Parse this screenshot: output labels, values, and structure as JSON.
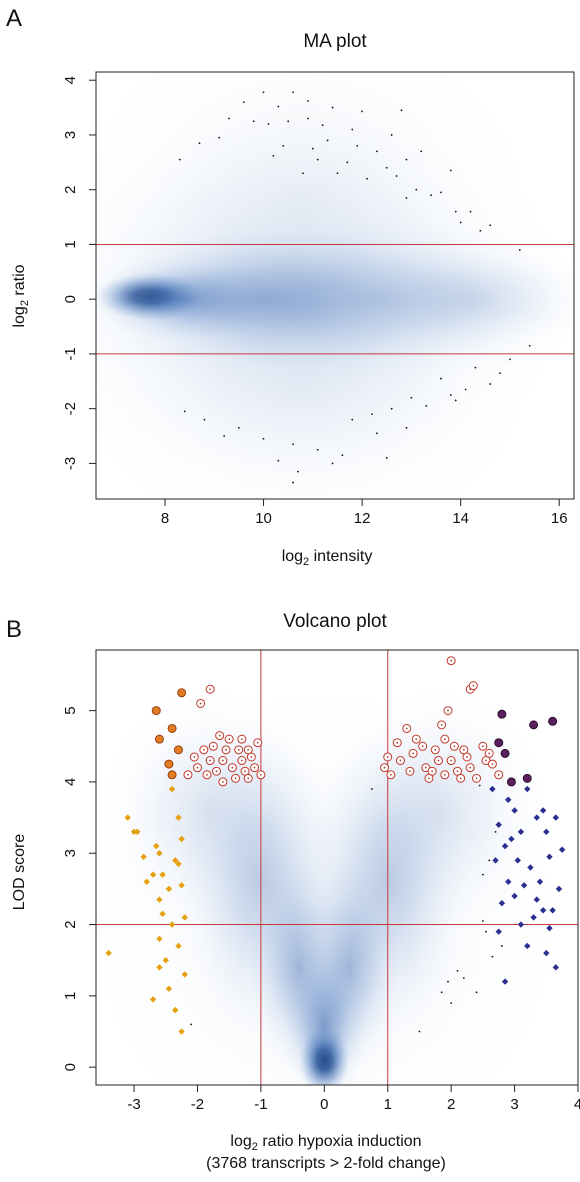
{
  "panels": [
    {
      "letter": "A"
    },
    {
      "letter": "B"
    }
  ],
  "colors": {
    "density_core": "#0b2a63",
    "density_mid": "#2f62aa",
    "density_light": "#c8d7ee",
    "threshold_lines": "#c83a3a",
    "induced_hollow": "#c0392b",
    "induced_filled_orange": "#e07c22",
    "induced_filled_purple": "#5b1f5e",
    "repressed_orange_diamond": "#e5a010",
    "repressed_blue_diamond": "#2b2f8f",
    "points": "#111111"
  },
  "chart_data": [
    {
      "type": "scatter",
      "title": "MA plot",
      "xlabel": "log2 intensity",
      "ylabel": "log2 ratio",
      "xlim": [
        6.6,
        16.3
      ],
      "ylim": [
        -3.65,
        4.15
      ],
      "xticks": [
        8,
        10,
        12,
        14,
        16
      ],
      "yticks": [
        -3,
        -2,
        -1,
        0,
        1,
        2,
        3,
        4
      ],
      "hlines": [
        1,
        -1
      ],
      "grid": false,
      "density": [
        {
          "x": 7.7,
          "y": 0.05,
          "sx": 0.5,
          "sy": 0.2,
          "alpha": 0.85
        },
        {
          "x": 8.4,
          "y": 0.0,
          "sx": 0.9,
          "sy": 0.35,
          "alpha": 0.45
        },
        {
          "x": 10.0,
          "y": 0.0,
          "sx": 1.6,
          "sy": 0.6,
          "alpha": 0.35
        },
        {
          "x": 12.3,
          "y": 0.0,
          "sx": 1.8,
          "sy": 0.7,
          "alpha": 0.22
        },
        {
          "x": 10.5,
          "y": 0.0,
          "sx": 2.7,
          "sy": 1.5,
          "alpha": 0.14
        },
        {
          "x": 14.2,
          "y": 0.0,
          "sx": 1.3,
          "sy": 0.5,
          "alpha": 0.15
        },
        {
          "x": 10.8,
          "y": 1.8,
          "sx": 2.2,
          "sy": 1.6,
          "alpha": 0.07
        },
        {
          "x": 10.8,
          "y": -1.6,
          "sx": 2.2,
          "sy": 1.4,
          "alpha": 0.07
        }
      ],
      "points": [
        [
          10.0,
          3.78
        ],
        [
          9.6,
          3.6
        ],
        [
          10.3,
          3.52
        ],
        [
          10.6,
          3.78
        ],
        [
          10.9,
          3.62
        ],
        [
          11.4,
          3.5
        ],
        [
          12.0,
          3.43
        ],
        [
          12.8,
          3.45
        ],
        [
          9.3,
          3.3
        ],
        [
          9.8,
          3.25
        ],
        [
          10.1,
          3.2
        ],
        [
          10.5,
          3.25
        ],
        [
          10.9,
          3.3
        ],
        [
          11.2,
          3.18
        ],
        [
          11.8,
          3.1
        ],
        [
          12.6,
          3.0
        ],
        [
          8.7,
          2.85
        ],
        [
          9.1,
          2.95
        ],
        [
          10.4,
          2.8
        ],
        [
          11.0,
          2.75
        ],
        [
          11.3,
          2.9
        ],
        [
          11.9,
          2.8
        ],
        [
          12.3,
          2.7
        ],
        [
          13.2,
          2.7
        ],
        [
          8.3,
          2.55
        ],
        [
          10.2,
          2.62
        ],
        [
          11.1,
          2.55
        ],
        [
          11.7,
          2.5
        ],
        [
          12.5,
          2.4
        ],
        [
          12.9,
          2.55
        ],
        [
          13.8,
          2.35
        ],
        [
          10.8,
          2.3
        ],
        [
          11.5,
          2.3
        ],
        [
          12.1,
          2.2
        ],
        [
          12.7,
          2.25
        ],
        [
          13.1,
          2.0
        ],
        [
          13.4,
          1.9
        ],
        [
          13.6,
          1.95
        ],
        [
          12.9,
          1.85
        ],
        [
          13.9,
          1.6
        ],
        [
          14.2,
          1.6
        ],
        [
          14.6,
          1.35
        ],
        [
          14.0,
          1.4
        ],
        [
          14.4,
          1.25
        ],
        [
          15.2,
          0.9
        ],
        [
          15.4,
          -0.85
        ],
        [
          15.0,
          -1.1
        ],
        [
          14.8,
          -1.35
        ],
        [
          14.3,
          -1.25
        ],
        [
          13.6,
          -1.45
        ],
        [
          14.6,
          -1.55
        ],
        [
          14.1,
          -1.65
        ],
        [
          13.8,
          -1.75
        ],
        [
          13.0,
          -1.8
        ],
        [
          13.3,
          -1.95
        ],
        [
          12.6,
          -2.0
        ],
        [
          12.2,
          -2.1
        ],
        [
          11.8,
          -2.2
        ],
        [
          13.9,
          -1.85
        ],
        [
          12.9,
          -2.35
        ],
        [
          12.3,
          -2.45
        ],
        [
          9.5,
          -2.35
        ],
        [
          10.0,
          -2.55
        ],
        [
          10.6,
          -2.65
        ],
        [
          11.1,
          -2.75
        ],
        [
          11.6,
          -2.85
        ],
        [
          10.3,
          -2.95
        ],
        [
          11.4,
          -3.0
        ],
        [
          10.7,
          -3.15
        ],
        [
          10.6,
          -3.35
        ],
        [
          8.4,
          -2.05
        ],
        [
          8.8,
          -2.2
        ],
        [
          9.2,
          -2.5
        ],
        [
          12.5,
          -2.9
        ]
      ]
    },
    {
      "type": "scatter",
      "title": "Volcano plot",
      "xlabel": "log2 ratio hypoxia induction",
      "xlabel_sub": "(3768 transcripts > 2-fold change)",
      "ylabel": "LOD score",
      "xlim": [
        -3.6,
        4.0
      ],
      "ylim": [
        -0.25,
        5.85
      ],
      "xticks": [
        -3,
        -2,
        -1,
        0,
        1,
        2,
        3,
        4
      ],
      "yticks": [
        0,
        1,
        2,
        3,
        4,
        5
      ],
      "vlines": [
        -1,
        1
      ],
      "hlines": [
        2
      ],
      "grid": false,
      "density": [
        {
          "x": 0.0,
          "y": 0.1,
          "sx": 0.18,
          "sy": 0.22,
          "alpha": 0.9
        },
        {
          "x": 0.0,
          "y": 0.6,
          "sx": 0.3,
          "sy": 0.55,
          "alpha": 0.55
        },
        {
          "x": -0.4,
          "y": 1.4,
          "sx": 0.35,
          "sy": 0.7,
          "alpha": 0.35
        },
        {
          "x": 0.4,
          "y": 1.4,
          "sx": 0.35,
          "sy": 0.7,
          "alpha": 0.35
        },
        {
          "x": -1.0,
          "y": 2.6,
          "sx": 0.6,
          "sy": 1.0,
          "alpha": 0.25
        },
        {
          "x": 1.0,
          "y": 2.6,
          "sx": 0.6,
          "sy": 1.0,
          "alpha": 0.25
        },
        {
          "x": -1.8,
          "y": 3.6,
          "sx": 0.8,
          "sy": 0.8,
          "alpha": 0.14
        },
        {
          "x": 1.8,
          "y": 3.6,
          "sx": 0.8,
          "sy": 0.8,
          "alpha": 0.14
        },
        {
          "x": 0.0,
          "y": 2.0,
          "sx": 1.8,
          "sy": 1.6,
          "alpha": 0.07
        }
      ],
      "orange_diamonds": [
        [
          -3.4,
          1.6
        ],
        [
          -3.1,
          3.5
        ],
        [
          -3.0,
          3.3
        ],
        [
          -2.85,
          2.95
        ],
        [
          -2.95,
          3.3
        ],
        [
          -2.6,
          3.0
        ],
        [
          -2.7,
          2.7
        ],
        [
          -2.6,
          2.35
        ],
        [
          -2.45,
          2.5
        ],
        [
          -2.55,
          2.15
        ],
        [
          -2.3,
          2.85
        ],
        [
          -2.25,
          2.55
        ],
        [
          -2.6,
          1.4
        ],
        [
          -2.45,
          1.1
        ],
        [
          -2.35,
          0.8
        ],
        [
          -2.25,
          0.5
        ],
        [
          -2.3,
          1.7
        ],
        [
          -2.2,
          1.3
        ],
        [
          -2.4,
          2.0
        ],
        [
          -2.2,
          2.1
        ],
        [
          -2.6,
          1.8
        ],
        [
          -2.4,
          3.9
        ],
        [
          -2.3,
          3.5
        ],
        [
          -2.25,
          3.2
        ],
        [
          -2.5,
          1.5
        ],
        [
          -2.7,
          0.95
        ],
        [
          -2.55,
          2.7
        ],
        [
          -2.35,
          2.9
        ],
        [
          -2.65,
          3.1
        ],
        [
          -2.8,
          2.6
        ]
      ],
      "orange_circles": [
        [
          -2.65,
          5.0
        ],
        [
          -2.4,
          4.75
        ],
        [
          -2.3,
          4.45
        ],
        [
          -2.45,
          4.25
        ],
        [
          -2.25,
          5.25
        ],
        [
          -2.4,
          4.1
        ],
        [
          -2.6,
          4.6
        ]
      ],
      "red_rings": [
        [
          -2.15,
          4.1
        ],
        [
          -2.0,
          4.2
        ],
        [
          -1.85,
          4.1
        ],
        [
          -1.8,
          4.3
        ],
        [
          -1.7,
          4.15
        ],
        [
          -1.6,
          4.3
        ],
        [
          -1.55,
          4.45
        ],
        [
          -1.45,
          4.2
        ],
        [
          -1.4,
          4.05
        ],
        [
          -1.3,
          4.3
        ],
        [
          -1.25,
          4.15
        ],
        [
          -1.2,
          4.05
        ],
        [
          -1.1,
          4.2
        ],
        [
          -1.05,
          4.55
        ],
        [
          -1.15,
          4.35
        ],
        [
          -1.75,
          4.5
        ],
        [
          -1.9,
          4.45
        ],
        [
          -1.65,
          4.65
        ],
        [
          -2.05,
          4.35
        ],
        [
          -1.35,
          4.45
        ],
        [
          -1.5,
          4.6
        ],
        [
          -1.95,
          5.1
        ],
        [
          -1.8,
          5.3
        ],
        [
          -1.6,
          4.0
        ],
        [
          -1.0,
          4.1
        ],
        [
          -1.3,
          4.6
        ],
        [
          -1.2,
          4.45
        ],
        [
          0.95,
          4.2
        ],
        [
          1.05,
          4.1
        ],
        [
          1.2,
          4.3
        ],
        [
          1.35,
          4.15
        ],
        [
          1.4,
          4.4
        ],
        [
          1.55,
          4.5
        ],
        [
          1.6,
          4.2
        ],
        [
          1.7,
          4.15
        ],
        [
          1.8,
          4.3
        ],
        [
          1.9,
          4.1
        ],
        [
          2.0,
          4.3
        ],
        [
          2.1,
          4.15
        ],
        [
          2.2,
          4.45
        ],
        [
          2.3,
          4.2
        ],
        [
          2.4,
          4.05
        ],
        [
          2.55,
          4.3
        ],
        [
          2.65,
          4.25
        ],
        [
          2.75,
          4.1
        ],
        [
          1.15,
          4.55
        ],
        [
          1.45,
          4.6
        ],
        [
          1.75,
          4.45
        ],
        [
          2.05,
          4.5
        ],
        [
          2.25,
          4.35
        ],
        [
          2.5,
          4.5
        ],
        [
          1.0,
          4.35
        ],
        [
          1.3,
          4.75
        ],
        [
          1.9,
          4.6
        ],
        [
          1.95,
          5.0
        ],
        [
          2.3,
          5.3
        ],
        [
          2.35,
          5.35
        ],
        [
          2.0,
          5.7
        ],
        [
          1.65,
          4.05
        ],
        [
          2.15,
          4.05
        ],
        [
          2.6,
          4.4
        ],
        [
          1.85,
          4.8
        ]
      ],
      "purple_circles": [
        [
          2.8,
          4.95
        ],
        [
          2.75,
          4.55
        ],
        [
          2.85,
          4.4
        ],
        [
          2.95,
          4.0
        ],
        [
          3.3,
          4.8
        ],
        [
          3.2,
          4.05
        ],
        [
          3.6,
          4.85
        ]
      ],
      "blue_diamonds": [
        [
          2.65,
          3.9
        ],
        [
          2.75,
          3.4
        ],
        [
          2.85,
          3.1
        ],
        [
          2.7,
          2.9
        ],
        [
          2.9,
          2.6
        ],
        [
          2.8,
          2.3
        ],
        [
          3.0,
          3.6
        ],
        [
          3.1,
          3.3
        ],
        [
          3.0,
          2.4
        ],
        [
          3.1,
          2.0
        ],
        [
          3.2,
          1.7
        ],
        [
          3.25,
          2.8
        ],
        [
          3.35,
          3.5
        ],
        [
          3.45,
          3.6
        ],
        [
          3.5,
          3.3
        ],
        [
          3.55,
          2.95
        ],
        [
          3.4,
          2.6
        ],
        [
          3.45,
          2.2
        ],
        [
          3.55,
          1.95
        ],
        [
          3.65,
          1.4
        ],
        [
          3.75,
          3.05
        ],
        [
          3.7,
          2.5
        ],
        [
          2.85,
          1.2
        ],
        [
          2.75,
          1.9
        ],
        [
          3.05,
          2.9
        ],
        [
          3.2,
          3.9
        ],
        [
          3.6,
          2.2
        ],
        [
          3.3,
          2.1
        ],
        [
          2.95,
          3.2
        ],
        [
          3.15,
          2.55
        ],
        [
          3.5,
          1.6
        ],
        [
          2.9,
          3.75
        ],
        [
          3.65,
          3.5
        ],
        [
          3.35,
          2.35
        ]
      ],
      "small_points": [
        [
          -2.1,
          0.6
        ],
        [
          0.75,
          3.9
        ],
        [
          1.5,
          0.5
        ],
        [
          1.85,
          1.05
        ],
        [
          1.95,
          1.2
        ],
        [
          2.1,
          1.35
        ],
        [
          2.2,
          1.25
        ],
        [
          2.0,
          0.9
        ],
        [
          2.6,
          2.9
        ],
        [
          2.55,
          1.9
        ],
        [
          2.5,
          2.05
        ],
        [
          2.5,
          2.7
        ],
        [
          2.7,
          3.3
        ],
        [
          2.8,
          1.7
        ],
        [
          2.4,
          1.05
        ],
        [
          2.45,
          3.95
        ],
        [
          2.65,
          1.55
        ]
      ]
    }
  ]
}
